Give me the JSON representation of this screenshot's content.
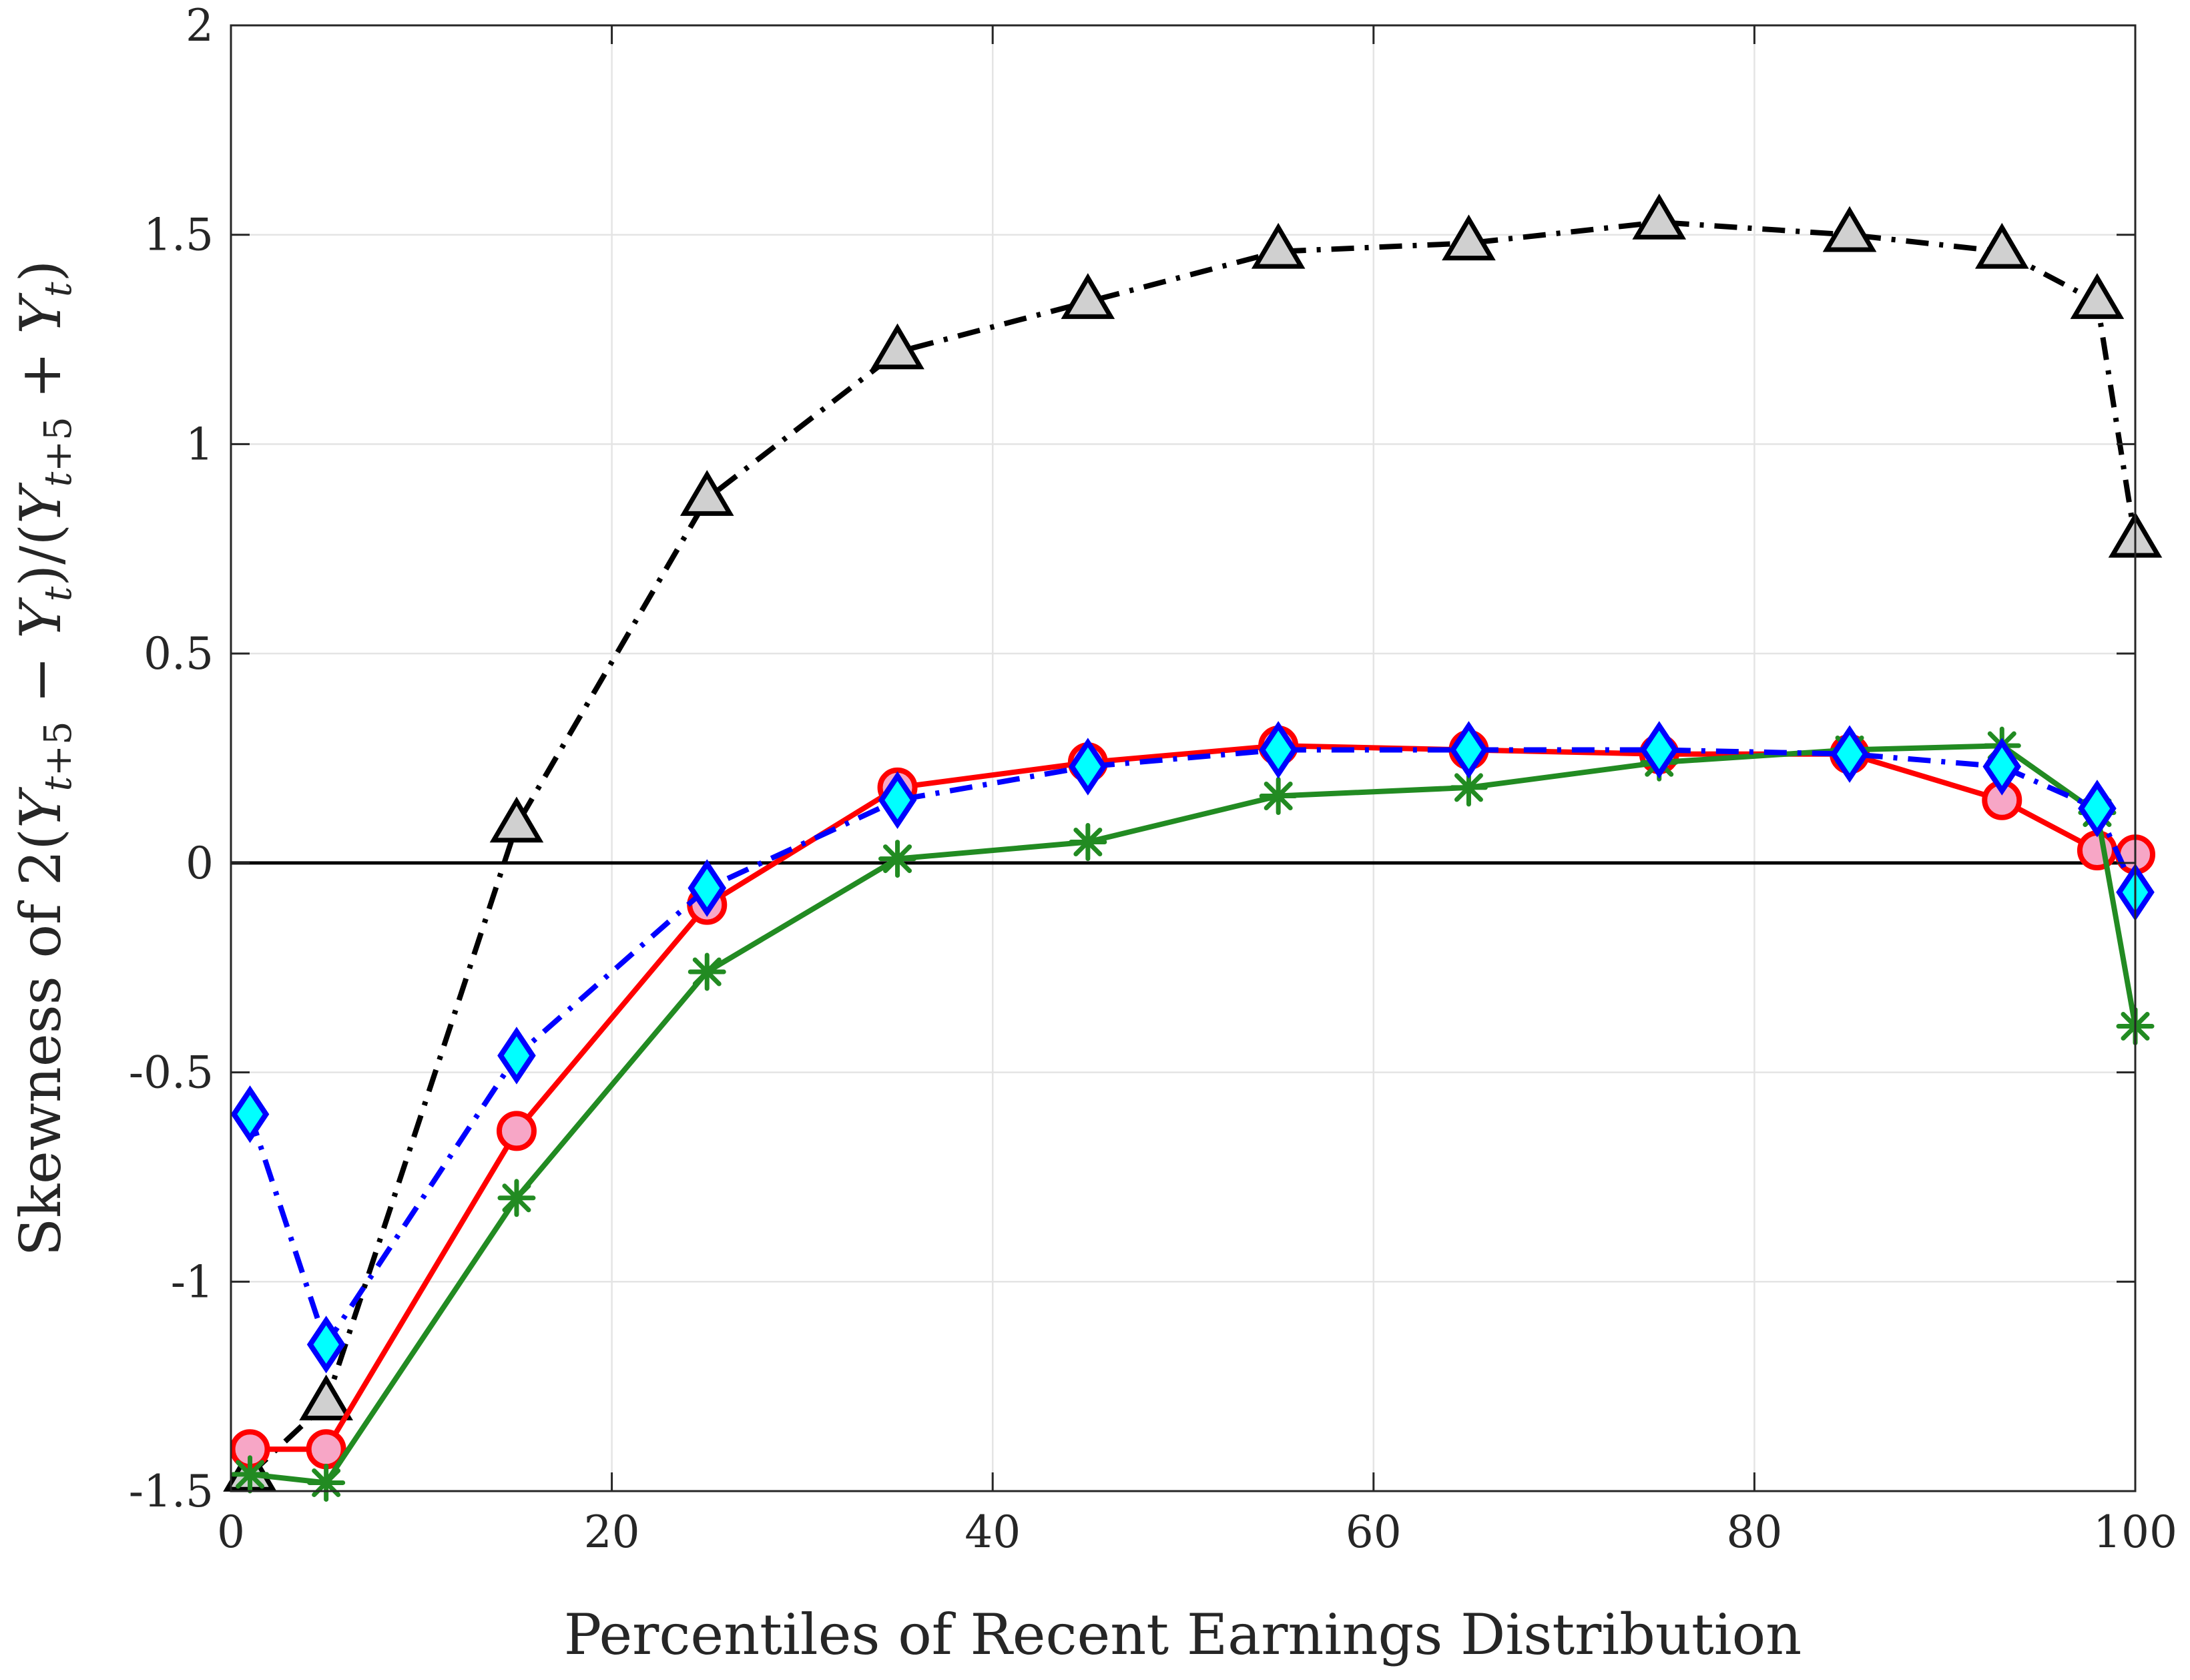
{
  "chart_data": {
    "type": "line",
    "xlabel": "Percentiles of Recent Earnings Distribution",
    "ylabel": "Skewness of 2(Y_{t+5} − Y_t)/(Y_{t+5} + Y_t)",
    "xlim": [
      0,
      100
    ],
    "ylim": [
      -1.5,
      2
    ],
    "xticks": [
      0,
      20,
      40,
      60,
      80,
      100
    ],
    "xtick_labels": [
      "0",
      "20",
      "40",
      "60",
      "80",
      "100"
    ],
    "yticks": [
      -1.5,
      -1,
      -0.5,
      0,
      0.5,
      1,
      1.5,
      2
    ],
    "ytick_labels": [
      "-1.5",
      "-1",
      "-0.5",
      "0",
      "0.5",
      "1",
      "1.5",
      "2"
    ],
    "grid": true,
    "reference_line_y": 0,
    "x": [
      1,
      5,
      15,
      25,
      35,
      45,
      55,
      65,
      75,
      85,
      93,
      98,
      100
    ],
    "series": [
      {
        "values": [
          -1.46,
          -1.29,
          0.09,
          0.87,
          1.22,
          1.34,
          1.46,
          1.48,
          1.53,
          1.5,
          1.46,
          1.34,
          0.77
        ],
        "color": "#000000",
        "marker": "triangle",
        "marker_fill": "#d0d0d0",
        "line_style": "dash-dot"
      },
      {
        "values": [
          -1.4,
          -1.4,
          -0.64,
          -0.1,
          0.18,
          0.24,
          0.28,
          0.27,
          0.26,
          0.26,
          0.15,
          0.03,
          0.02
        ],
        "color": "#ff0000",
        "marker": "circle",
        "marker_fill": "#f7a6c6",
        "line_style": "solid"
      },
      {
        "values": [
          -1.46,
          -1.48,
          -0.8,
          -0.26,
          0.01,
          0.05,
          0.16,
          0.18,
          0.24,
          0.27,
          0.28,
          0.12,
          -0.39
        ],
        "color": "#228b22",
        "marker": "asterisk",
        "marker_fill": "none",
        "line_style": "solid"
      },
      {
        "values": [
          -0.6,
          -1.15,
          -0.46,
          -0.06,
          0.15,
          0.23,
          0.27,
          0.27,
          0.27,
          0.26,
          0.23,
          0.13,
          -0.07
        ],
        "color": "#0000ff",
        "marker": "diamond",
        "marker_fill": "#00ffff",
        "line_style": "dash-dot"
      }
    ]
  }
}
